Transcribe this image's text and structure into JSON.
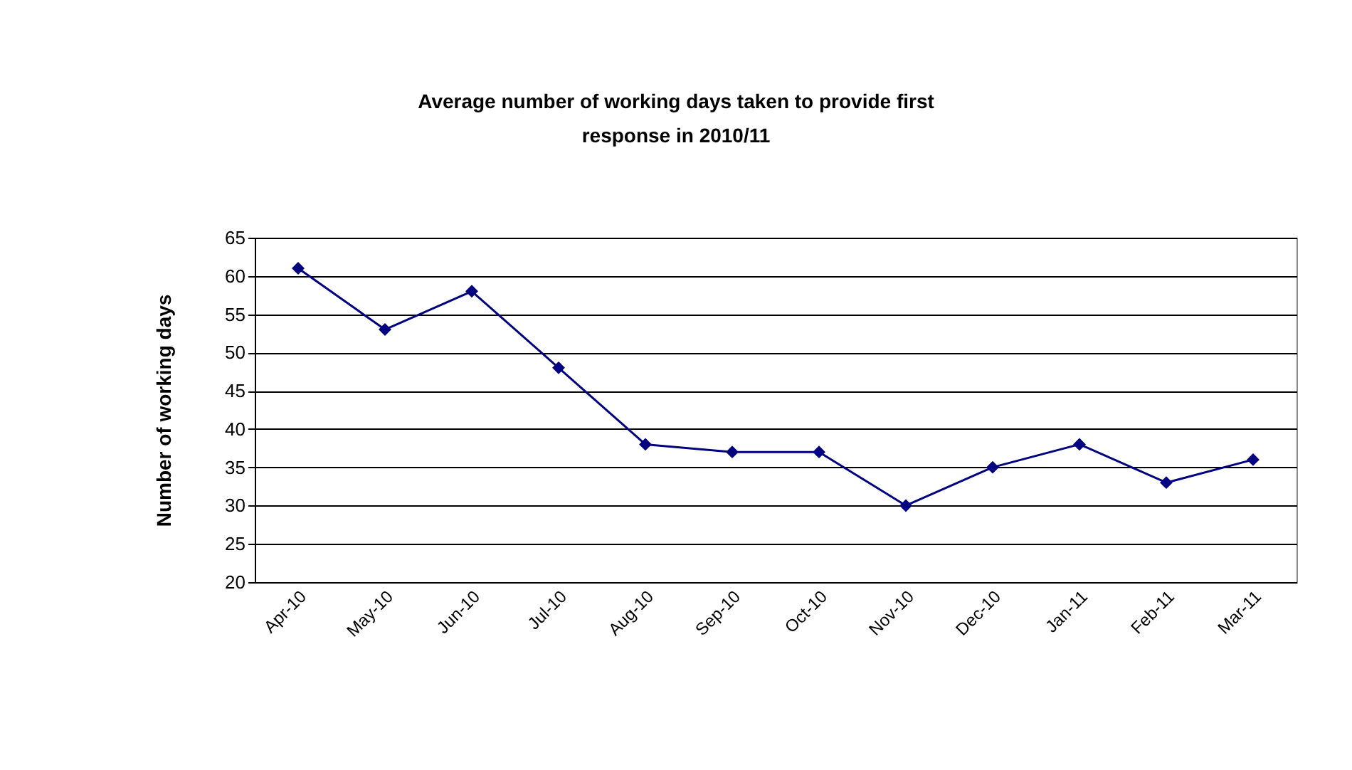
{
  "chart_data": {
    "type": "line",
    "title": "Average number of working days taken to provide first response in 2010/11",
    "ylabel": "Number of working days",
    "categories": [
      "Apr-10",
      "May-10",
      "Jun-10",
      "Jul-10",
      "Aug-10",
      "Sep-10",
      "Oct-10",
      "Nov-10",
      "Dec-10",
      "Jan-11",
      "Feb-11",
      "Mar-11"
    ],
    "series": [
      {
        "color": "#000080",
        "values": [
          61,
          53,
          58,
          48,
          38,
          37,
          37,
          30,
          35,
          38,
          33,
          36
        ]
      }
    ],
    "ylim": [
      20,
      65
    ],
    "yticks": [
      20,
      25,
      30,
      35,
      40,
      45,
      50,
      55,
      60,
      65
    ],
    "grid": "y",
    "marker": "diamond",
    "line_style": "solid"
  }
}
